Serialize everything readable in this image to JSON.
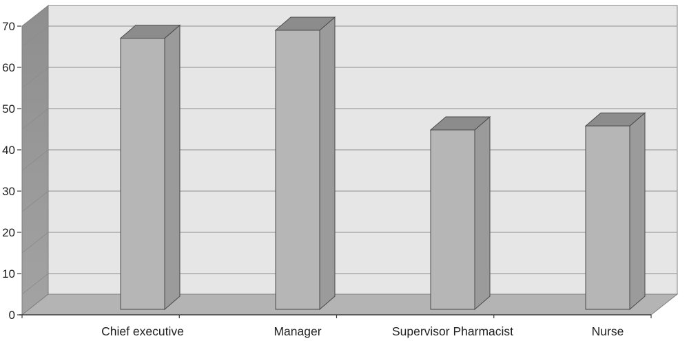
{
  "chart_data": {
    "type": "bar",
    "projection": "3d-column",
    "title": "",
    "xlabel": "",
    "ylabel": "",
    "categories": [
      "Chief executive",
      "Manager",
      "Supervisor Pharmacist",
      "Nurse"
    ],
    "values": [
      68,
      70,
      45,
      46
    ],
    "ylim": [
      0,
      70
    ],
    "ytick_interval": 10,
    "yticks": [
      0,
      10,
      20,
      30,
      40,
      50,
      60,
      70
    ],
    "grid": true,
    "legend": false,
    "colors": {
      "background": "#ffffff",
      "back_wall": "#e6e6e6",
      "left_wall_top": "#8e8e8e",
      "left_wall_bottom": "#a3a3a3",
      "floor": "#b4b4b4",
      "gridline": "#9f9f9f",
      "wall_gridline": "#8d8d8d",
      "bar_front": "#b6b6b6",
      "bar_side": "#9b9b9b",
      "bar_top": "#8c8c8c",
      "bar_outline": "#4a4a4a",
      "axis_line": "#3c3c3c",
      "wall_outline": "#7f7f7f",
      "text": "#1f1f1f"
    }
  }
}
